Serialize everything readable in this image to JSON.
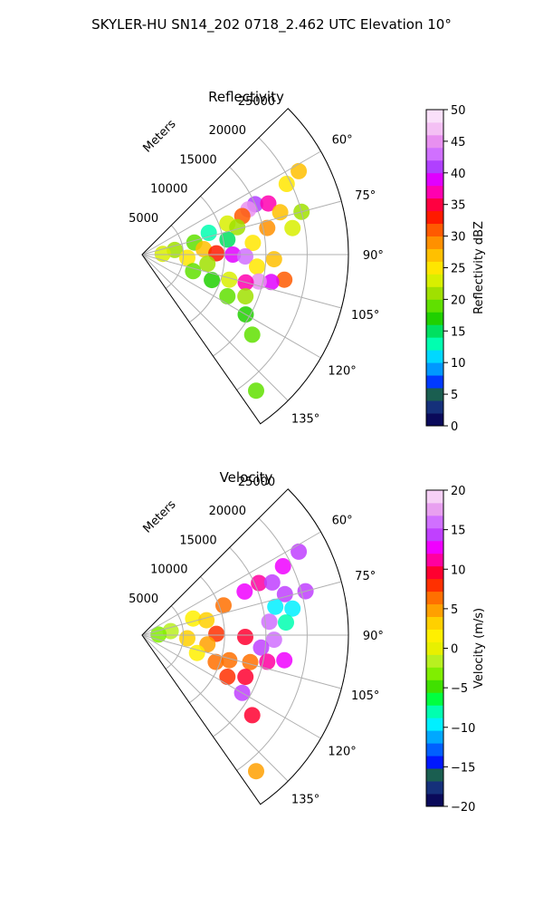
{
  "figure": {
    "suptitle": "SKYLER-HU  SN14_202  0718_2.462 UTC Elevation 10°"
  },
  "chart_data": [
    {
      "type": "heatmap",
      "projection": "polar-sector",
      "title": "Reflectivity",
      "range_label": "Meters",
      "range_ticks": [
        5000,
        10000,
        15000,
        20000,
        25000
      ],
      "range_max": 25000,
      "azimuth_range_deg": [
        45,
        145
      ],
      "azimuth_ticks": [
        "60°",
        "75°",
        "90°",
        "105°",
        "120°",
        "135°"
      ],
      "grid": true,
      "colorbar": {
        "label": "Reflectivity dBZ",
        "min": 0,
        "max": 50,
        "ticks": [
          "0",
          "5",
          "10",
          "15",
          "20",
          "25",
          "30",
          "35",
          "40",
          "45",
          "50"
        ],
        "colors": [
          "#0a0a5a",
          "#15307a",
          "#1a5e50",
          "#003aff",
          "#0098ff",
          "#00d8ff",
          "#00ffb0",
          "#00e060",
          "#20d000",
          "#60e000",
          "#a0e000",
          "#d8ef00",
          "#ffe600",
          "#ffc000",
          "#ff9000",
          "#ff5a00",
          "#ff1a00",
          "#ff0040",
          "#ff00b0",
          "#e000ff",
          "#b040ff",
          "#d070ff",
          "#e890f0",
          "#f4c0f4",
          "#fae0fa"
        ]
      },
      "cells": [
        {
          "az": 62,
          "r": 21500,
          "v": 26
        },
        {
          "az": 64,
          "r": 19500,
          "v": 24
        },
        {
          "az": 66,
          "r": 15000,
          "v": 40
        },
        {
          "az": 67,
          "r": 14000,
          "v": 44
        },
        {
          "az": 68,
          "r": 16500,
          "v": 36
        },
        {
          "az": 69,
          "r": 13000,
          "v": 30
        },
        {
          "az": 70,
          "r": 11000,
          "v": 22
        },
        {
          "az": 72,
          "r": 8500,
          "v": 12
        },
        {
          "az": 73,
          "r": 17500,
          "v": 26
        },
        {
          "az": 74,
          "r": 12000,
          "v": 20
        },
        {
          "az": 75,
          "r": 20000,
          "v": 21
        },
        {
          "az": 77,
          "r": 6500,
          "v": 18
        },
        {
          "az": 78,
          "r": 15500,
          "v": 28
        },
        {
          "az": 80,
          "r": 10500,
          "v": 14
        },
        {
          "az": 80,
          "r": 18500,
          "v": 22
        },
        {
          "az": 82,
          "r": 4000,
          "v": 20
        },
        {
          "az": 84,
          "r": 13500,
          "v": 24
        },
        {
          "az": 85,
          "r": 7500,
          "v": 26
        },
        {
          "az": 88,
          "r": 2500,
          "v": 22
        },
        {
          "az": 89,
          "r": 9000,
          "v": 32
        },
        {
          "az": 90,
          "r": 11000,
          "v": 38
        },
        {
          "az": 91,
          "r": 12500,
          "v": 42
        },
        {
          "az": 92,
          "r": 16000,
          "v": 27
        },
        {
          "az": 94,
          "r": 5500,
          "v": 24
        },
        {
          "az": 96,
          "r": 14000,
          "v": 25
        },
        {
          "az": 98,
          "r": 8000,
          "v": 20
        },
        {
          "az": 100,
          "r": 17500,
          "v": 30
        },
        {
          "az": 102,
          "r": 16000,
          "v": 38
        },
        {
          "az": 103,
          "r": 14500,
          "v": 44
        },
        {
          "az": 105,
          "r": 13000,
          "v": 36
        },
        {
          "az": 106,
          "r": 11000,
          "v": 22
        },
        {
          "az": 108,
          "r": 6500,
          "v": 19
        },
        {
          "az": 110,
          "r": 9000,
          "v": 16
        },
        {
          "az": 112,
          "r": 13500,
          "v": 20
        },
        {
          "az": 116,
          "r": 11500,
          "v": 18
        },
        {
          "az": 120,
          "r": 14500,
          "v": 16
        },
        {
          "az": 126,
          "r": 16500,
          "v": 18
        },
        {
          "az": 140,
          "r": 21500,
          "v": 18
        }
      ]
    },
    {
      "type": "heatmap",
      "projection": "polar-sector",
      "title": "Velocity",
      "range_label": "Meters",
      "range_ticks": [
        5000,
        10000,
        15000,
        20000,
        25000
      ],
      "range_max": 25000,
      "azimuth_range_deg": [
        45,
        145
      ],
      "azimuth_ticks": [
        "60°",
        "75°",
        "90°",
        "105°",
        "120°",
        "135°"
      ],
      "grid": true,
      "colorbar": {
        "label": "Velocity (m/s)",
        "min": -20,
        "max": 20,
        "ticks": [
          "−20",
          "−15",
          "−10",
          "−5",
          "0",
          "5",
          "10",
          "15",
          "20"
        ],
        "colors": [
          "#0a0a5a",
          "#15307a",
          "#1a5e50",
          "#0018ff",
          "#0060ff",
          "#00a8ff",
          "#00f0ff",
          "#00ffb0",
          "#00ff40",
          "#40e000",
          "#80ee00",
          "#b8f020",
          "#e8f000",
          "#fff000",
          "#ffd000",
          "#ffa000",
          "#ff7000",
          "#ff3000",
          "#ff0030",
          "#ff00a0",
          "#f000ff",
          "#c040ff",
          "#d070ff",
          "#e8a0f0",
          "#f6d0f6"
        ]
      },
      "cells": [
        {
          "az": 62,
          "r": 21500,
          "v": 14
        },
        {
          "az": 64,
          "r": 19000,
          "v": 12
        },
        {
          "az": 66,
          "r": 15500,
          "v": 11
        },
        {
          "az": 67,
          "r": 13500,
          "v": 12
        },
        {
          "az": 68,
          "r": 17000,
          "v": 15
        },
        {
          "az": 70,
          "r": 10500,
          "v": 6
        },
        {
          "az": 72,
          "r": 6500,
          "v": 1
        },
        {
          "az": 74,
          "r": 18000,
          "v": 14
        },
        {
          "az": 75,
          "r": 20500,
          "v": 15
        },
        {
          "az": 77,
          "r": 8000,
          "v": 3
        },
        {
          "az": 78,
          "r": 16500,
          "v": -9
        },
        {
          "az": 80,
          "r": 18500,
          "v": -10
        },
        {
          "az": 82,
          "r": 3500,
          "v": -2
        },
        {
          "az": 84,
          "r": 15500,
          "v": 16
        },
        {
          "az": 85,
          "r": 17500,
          "v": -8
        },
        {
          "az": 88,
          "r": 2000,
          "v": -3
        },
        {
          "az": 89,
          "r": 9000,
          "v": 8
        },
        {
          "az": 91,
          "r": 12500,
          "v": 9
        },
        {
          "az": 92,
          "r": 16000,
          "v": 16
        },
        {
          "az": 94,
          "r": 5500,
          "v": 3
        },
        {
          "az": 96,
          "r": 14500,
          "v": 15
        },
        {
          "az": 98,
          "r": 8000,
          "v": 5
        },
        {
          "az": 100,
          "r": 17500,
          "v": 13
        },
        {
          "az": 102,
          "r": 15500,
          "v": 11
        },
        {
          "az": 104,
          "r": 13500,
          "v": 6
        },
        {
          "az": 106,
          "r": 11000,
          "v": 7
        },
        {
          "az": 108,
          "r": 7000,
          "v": 2
        },
        {
          "az": 110,
          "r": 9500,
          "v": 7
        },
        {
          "az": 112,
          "r": 13500,
          "v": 9
        },
        {
          "az": 116,
          "r": 11500,
          "v": 8
        },
        {
          "az": 120,
          "r": 14000,
          "v": 14
        },
        {
          "az": 126,
          "r": 16500,
          "v": 9
        },
        {
          "az": 140,
          "r": 21500,
          "v": 5
        }
      ]
    }
  ]
}
